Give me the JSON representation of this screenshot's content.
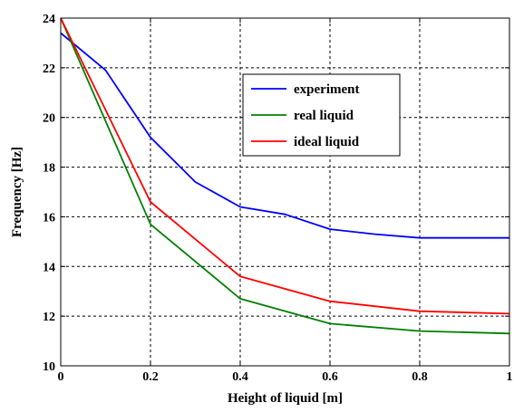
{
  "chart_data": {
    "type": "line",
    "title": "",
    "xlabel": "Height of liquid [m]",
    "ylabel": "Frequency [Hz]",
    "xlim": [
      0,
      1
    ],
    "ylim": [
      10,
      24
    ],
    "xticks": [
      "0",
      "0.2",
      "0.4",
      "0.6",
      "0.8",
      "1"
    ],
    "yticks": [
      "10",
      "12",
      "14",
      "16",
      "18",
      "20",
      "22",
      "24"
    ],
    "grid": true,
    "legend_position": "top-right",
    "series": [
      {
        "name": "experiment",
        "color": "#0000ff",
        "x": [
          0,
          0.1,
          0.2,
          0.3,
          0.4,
          0.5,
          0.6,
          0.7,
          0.8,
          0.9,
          1.0
        ],
        "y": [
          23.4,
          21.9,
          19.2,
          17.4,
          16.4,
          16.1,
          15.5,
          15.3,
          15.15,
          15.15,
          15.15
        ]
      },
      {
        "name": "real liquid",
        "color": "#008000",
        "x": [
          0,
          0.2,
          0.4,
          0.6,
          0.8,
          1.0
        ],
        "y": [
          24.0,
          15.7,
          12.7,
          11.7,
          11.4,
          11.3
        ]
      },
      {
        "name": "ideal liquid",
        "color": "#ff0000",
        "x": [
          0,
          0.2,
          0.4,
          0.6,
          0.8,
          1.0
        ],
        "y": [
          24.0,
          16.6,
          13.6,
          12.6,
          12.2,
          12.1
        ]
      }
    ]
  }
}
